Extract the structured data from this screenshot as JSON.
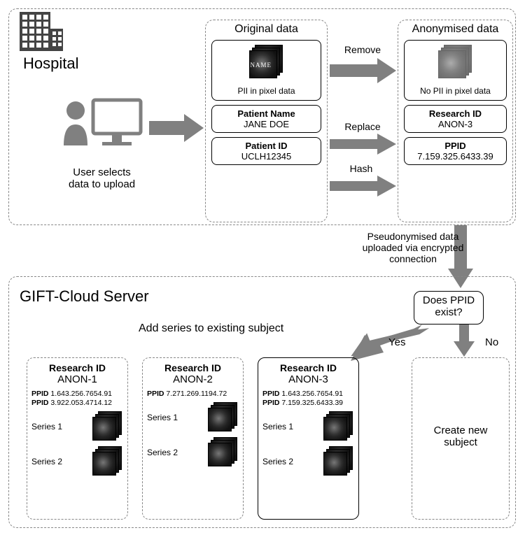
{
  "colors": {
    "arrow": "#808080",
    "dash_border": "#888888",
    "text": "#000000",
    "bg": "#ffffff"
  },
  "hospital": {
    "label": "Hospital",
    "user_caption": "User selects\ndata to upload",
    "original": {
      "title": "Original data",
      "img_caption": "PII in pixel data",
      "img_overlay": "NAME",
      "name_hdr": "Patient Name",
      "name_val": "JANE DOE",
      "id_hdr": "Patient ID",
      "id_val": "UCLH12345"
    },
    "anon": {
      "title": "Anonymised data",
      "img_caption": "No PII in pixel data",
      "name_hdr": "Research ID",
      "name_val": "ANON-3",
      "id_hdr": "PPID",
      "id_val": "7.159.325.6433.39"
    },
    "arrow_labels": {
      "remove": "Remove",
      "replace": "Replace",
      "hash": "Hash"
    }
  },
  "upload_label": "Pseudonymised data\nuploaded via encrypted\nconnection",
  "server": {
    "label": "GIFT-Cloud Server",
    "decision": "Does PPID\nexist?",
    "yes": "Yes",
    "no": "No",
    "add_label": "Add series to existing subject",
    "create_label": "Create new\nsubject",
    "subjects": [
      {
        "research_hdr": "Research ID",
        "research_val": "ANON-1",
        "ppids": [
          "1.643.256.7654.91",
          "3.922.053.4714.12"
        ],
        "series": [
          "Series 1",
          "Series 2"
        ]
      },
      {
        "research_hdr": "Research ID",
        "research_val": "ANON-2",
        "ppids": [
          "7.271.269.1194.72"
        ],
        "series": [
          "Series 1",
          "Series 2"
        ]
      },
      {
        "research_hdr": "Research ID",
        "research_val": "ANON-3",
        "ppids": [
          "1.643.256.7654.91",
          "7.159.325.6433.39"
        ],
        "series": [
          "Series 1",
          "Series 2"
        ]
      }
    ]
  }
}
